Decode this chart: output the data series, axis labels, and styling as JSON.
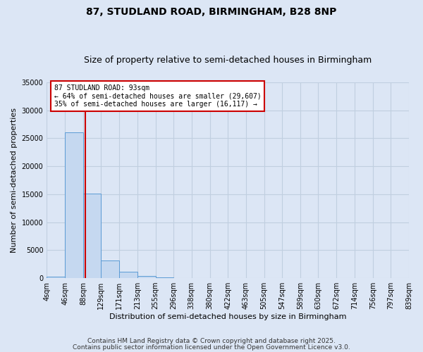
{
  "title1": "87, STUDLAND ROAD, BIRMINGHAM, B28 8NP",
  "title2": "Size of property relative to semi-detached houses in Birmingham",
  "xlabel": "Distribution of semi-detached houses by size in Birmingham",
  "ylabel": "Number of semi-detached properties",
  "bin_edges": [
    4,
    46,
    88,
    129,
    171,
    213,
    255,
    296,
    338,
    380,
    422,
    463,
    505,
    547,
    589,
    630,
    672,
    714,
    756,
    797,
    839
  ],
  "bar_heights": [
    300,
    26100,
    15100,
    3100,
    1100,
    400,
    150,
    50,
    30,
    20,
    10,
    5,
    3,
    2,
    1,
    1,
    0,
    0,
    0,
    0
  ],
  "bar_color": "#c5d8f0",
  "bar_edge_color": "#5b9bd5",
  "property_size": 93,
  "vline_color": "#cc0000",
  "annotation_title": "87 STUDLAND ROAD: 93sqm",
  "annotation_line2": "← 64% of semi-detached houses are smaller (29,607)",
  "annotation_line3": "35% of semi-detached houses are larger (16,117) →",
  "annotation_box_color": "#ffffff",
  "annotation_border_color": "#cc0000",
  "ylim": [
    0,
    35000
  ],
  "yticks": [
    0,
    5000,
    10000,
    15000,
    20000,
    25000,
    30000,
    35000
  ],
  "background_color": "#dce6f5",
  "plot_bg_color": "#dce6f5",
  "grid_color": "#c0cfe0",
  "footer1": "Contains HM Land Registry data © Crown copyright and database right 2025.",
  "footer2": "Contains public sector information licensed under the Open Government Licence v3.0.",
  "title1_fontsize": 10,
  "title2_fontsize": 9,
  "axis_fontsize": 8,
  "tick_fontsize": 7,
  "footer_fontsize": 6.5
}
